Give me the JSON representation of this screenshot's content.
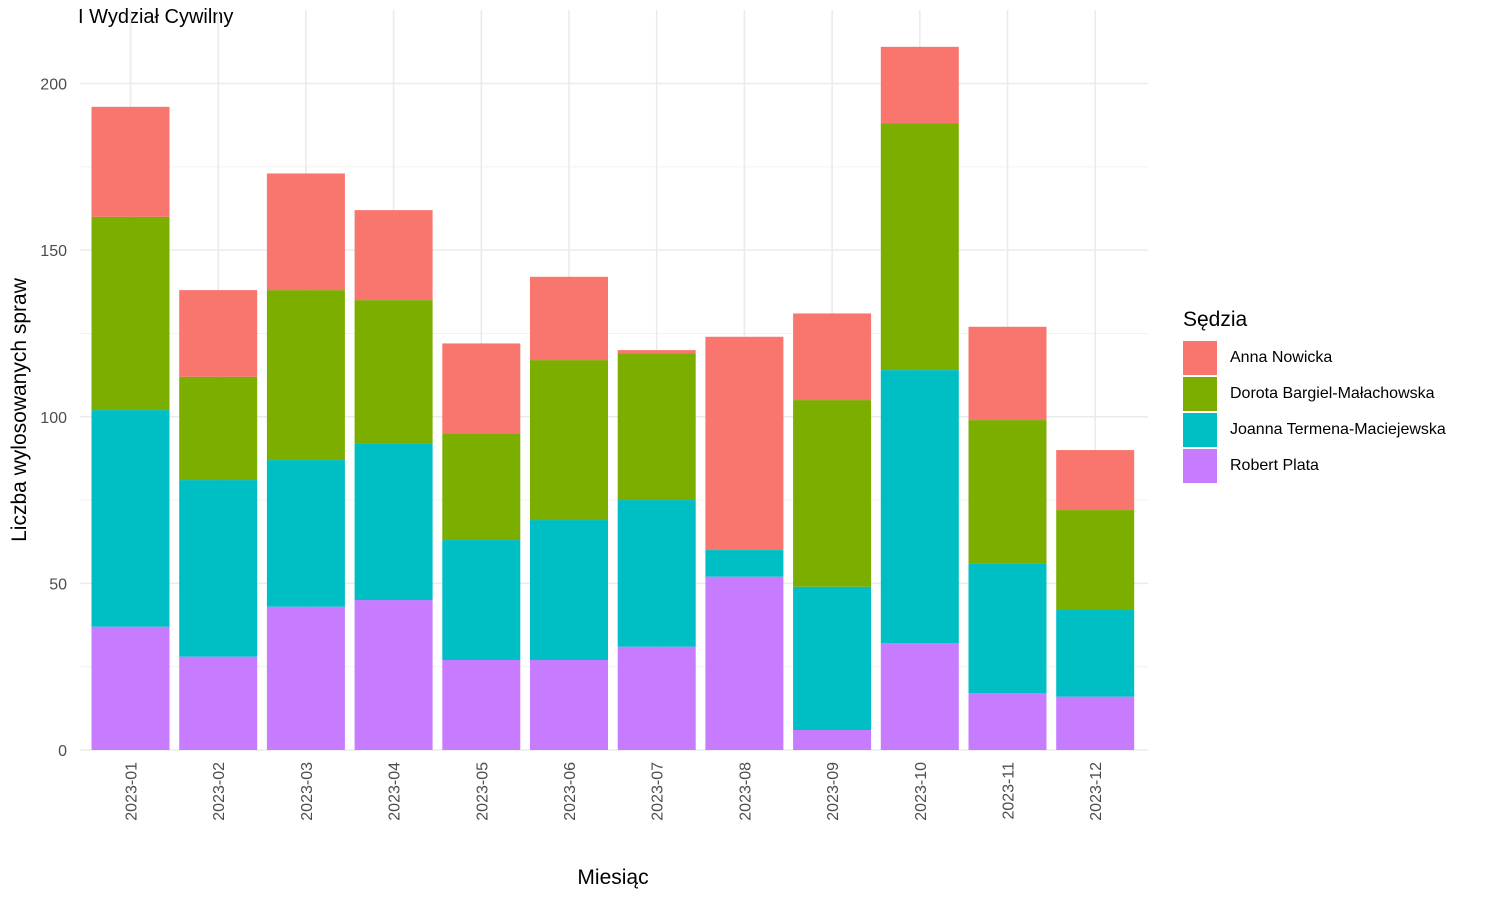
{
  "chart_data": {
    "type": "bar",
    "stacked": true,
    "title": "I Wydział Cywilny",
    "xlabel": "Miesiąc",
    "ylabel": "Liczba wylosowanych spraw",
    "ylim": [
      0,
      220
    ],
    "yticks": [
      0,
      50,
      100,
      150,
      200
    ],
    "grid": true,
    "legend_title": "Sędzia",
    "legend_position": "right",
    "categories": [
      "2023-01",
      "2023-02",
      "2023-03",
      "2023-04",
      "2023-05",
      "2023-06",
      "2023-07",
      "2023-08",
      "2023-09",
      "2023-10",
      "2023-11",
      "2023-12"
    ],
    "series": [
      {
        "name": "Robert Plata",
        "color": "#C77CFF",
        "values": [
          37,
          28,
          43,
          45,
          27,
          27,
          31,
          52,
          6,
          32,
          17,
          16
        ]
      },
      {
        "name": "Joanna Termena-Maciejewska",
        "color": "#00BFC4",
        "values": [
          65,
          53,
          44,
          47,
          36,
          42,
          44,
          8,
          43,
          82,
          39,
          26
        ]
      },
      {
        "name": "Dorota Bargiel-Małachowska",
        "color": "#7CAE00",
        "values": [
          58,
          31,
          51,
          43,
          32,
          48,
          44,
          0,
          56,
          74,
          43,
          30
        ]
      },
      {
        "name": "Anna Nowicka",
        "color": "#F8766D",
        "values": [
          33,
          26,
          35,
          27,
          27,
          25,
          1,
          64,
          26,
          23,
          28,
          18
        ]
      }
    ],
    "legend_order": [
      "Anna Nowicka",
      "Dorota Bargiel-Małachowska",
      "Joanna Termena-Maciejewska",
      "Robert Plata"
    ]
  }
}
